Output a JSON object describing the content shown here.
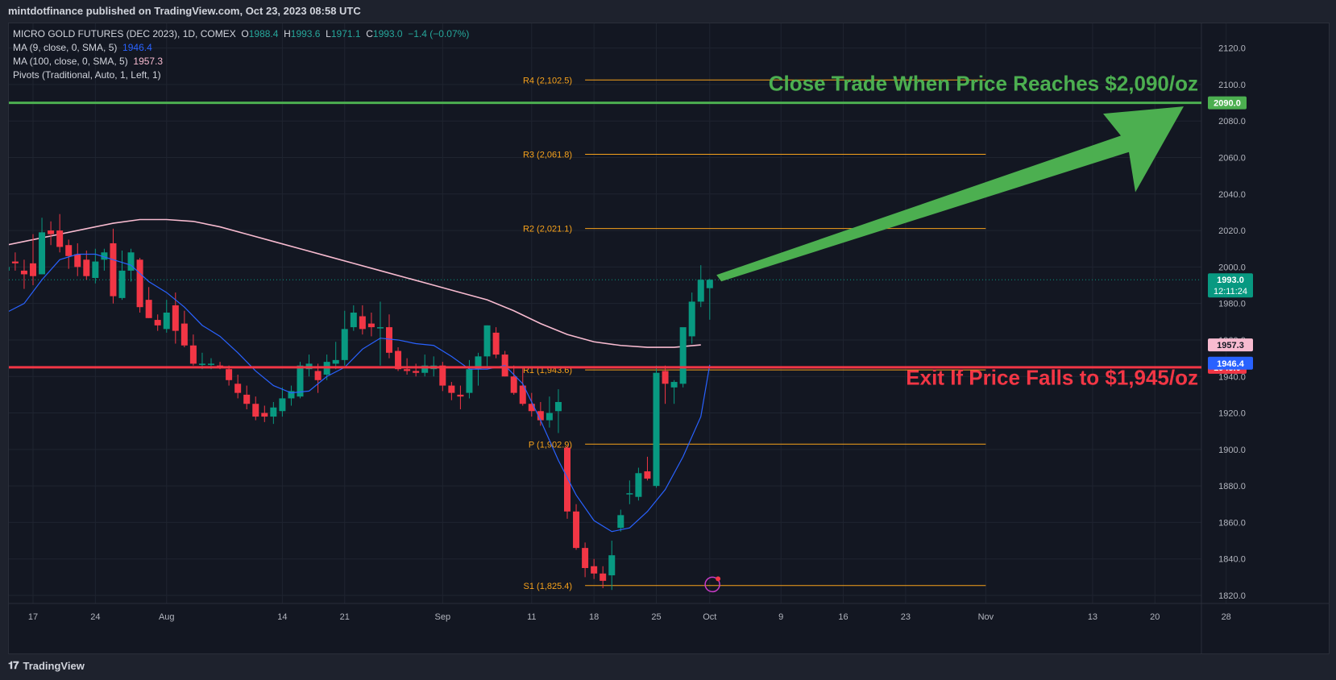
{
  "header": {
    "published": "mintdotfinance published on TradingView.com, Oct 23, 2023 08:58 UTC"
  },
  "legend": {
    "symbol": "MICRO GOLD FUTURES (DEC 2023), 1D, COMEX",
    "open_label": "O",
    "open": "1988.4",
    "high_label": "H",
    "high": "1993.6",
    "low_label": "L",
    "low": "1971.1",
    "close_label": "C",
    "close": "1993.0",
    "change": "−1.4 (−0.07%)",
    "ma9_label": "MA (9, close, 0, SMA, 5)",
    "ma9_value": "1946.4",
    "ma100_label": "MA (100, close, 0, SMA, 5)",
    "ma100_value": "1957.3",
    "pivots_label": "Pivots (Traditional, Auto, 1, Left, 1)"
  },
  "footer": {
    "logo": "TradingView"
  },
  "annotations": {
    "take_profit": "Close Trade When Price Reaches $2,090/oz",
    "stop_loss": "Exit If Price Falls to $1,945/oz"
  },
  "colors": {
    "background": "#131722",
    "up": "#089981",
    "down": "#f23645",
    "ma9": "#2962ff",
    "ma100": "#f8bbd0",
    "pivot": "#f7a21b",
    "take_profit": "#4caf50",
    "stop_loss": "#f23645",
    "grid": "#1f2430"
  },
  "chart_data": {
    "type": "candlestick",
    "ylim": [
      1820,
      2130
    ],
    "y_ticks": [
      1820,
      1840,
      1860,
      1880,
      1900,
      1920,
      1940,
      1960,
      1980,
      2000,
      2020,
      2040,
      2060,
      2080,
      2100,
      2120
    ],
    "y_tick_labels": [
      "1820.0",
      "1840.0",
      "1860.0",
      "1880.0",
      "1900.0",
      "1920.0",
      "1940.0",
      "1960.0",
      "1980.0",
      "2000.0",
      "2020.0",
      "2040.0",
      "2060.0",
      "2080.0",
      "2100.0",
      "2120.0"
    ],
    "x_ticks": [
      {
        "label": "17",
        "day": 0
      },
      {
        "label": "24",
        "day": 7
      },
      {
        "label": "Aug",
        "day": 15
      },
      {
        "label": "14",
        "day": 28
      },
      {
        "label": "21",
        "day": 35
      },
      {
        "label": "Sep",
        "day": 46
      },
      {
        "label": "11",
        "day": 56
      },
      {
        "label": "18",
        "day": 63
      },
      {
        "label": "25",
        "day": 70
      },
      {
        "label": "Oct",
        "day": 76
      },
      {
        "label": "9",
        "day": 84
      },
      {
        "label": "16",
        "day": 91
      },
      {
        "label": "23",
        "day": 98
      },
      {
        "label": "Nov",
        "day": 107
      },
      {
        "label": "13",
        "day": 119
      },
      {
        "label": "20",
        "day": 126
      },
      {
        "label": "28",
        "day": 134
      }
    ],
    "x_range_days": [
      -3,
      136
    ],
    "candles": [
      {
        "d": -3,
        "o": 1998,
        "h": 2006,
        "l": 1995,
        "c": 2000
      },
      {
        "d": -2,
        "o": 2003,
        "h": 2008,
        "l": 1998,
        "c": 2002
      },
      {
        "d": -1,
        "o": 1998,
        "h": 2004,
        "l": 1988,
        "c": 1996
      },
      {
        "d": 0,
        "o": 2002,
        "h": 2018,
        "l": 1990,
        "c": 1995
      },
      {
        "d": 1,
        "o": 1996,
        "h": 2027,
        "l": 1996,
        "c": 2019
      },
      {
        "d": 2,
        "o": 2020,
        "h": 2025,
        "l": 2012,
        "c": 2018
      },
      {
        "d": 3,
        "o": 2020,
        "h": 2029,
        "l": 2008,
        "c": 2011
      },
      {
        "d": 4,
        "o": 2012,
        "h": 2015,
        "l": 1999,
        "c": 2006
      },
      {
        "d": 5,
        "o": 2007,
        "h": 2013,
        "l": 1995,
        "c": 2000
      },
      {
        "d": 6,
        "o": 2004,
        "h": 2009,
        "l": 1993,
        "c": 1995
      },
      {
        "d": 7,
        "o": 1994,
        "h": 2010,
        "l": 1991,
        "c": 2003
      },
      {
        "d": 8,
        "o": 2004,
        "h": 2010,
        "l": 1998,
        "c": 2008
      },
      {
        "d": 9,
        "o": 2013,
        "h": 2021,
        "l": 1980,
        "c": 1984
      },
      {
        "d": 10,
        "o": 1983,
        "h": 2009,
        "l": 1982,
        "c": 1998
      },
      {
        "d": 11,
        "o": 1998,
        "h": 2010,
        "l": 1992,
        "c": 2008
      },
      {
        "d": 12,
        "o": 2004,
        "h": 2005,
        "l": 1975,
        "c": 1978
      },
      {
        "d": 13,
        "o": 1982,
        "h": 1989,
        "l": 1972,
        "c": 1972
      },
      {
        "d": 14,
        "o": 1971,
        "h": 1974,
        "l": 1965,
        "c": 1968
      },
      {
        "d": 15,
        "o": 1966,
        "h": 1982,
        "l": 1964,
        "c": 1975
      },
      {
        "d": 16,
        "o": 1979,
        "h": 1986,
        "l": 1958,
        "c": 1965
      },
      {
        "d": 17,
        "o": 1969,
        "h": 1976,
        "l": 1956,
        "c": 1957
      },
      {
        "d": 18,
        "o": 1957,
        "h": 1963,
        "l": 1946,
        "c": 1947
      },
      {
        "d": 19,
        "o": 1947,
        "h": 1953,
        "l": 1944,
        "c": 1947
      },
      {
        "d": 20,
        "o": 1947,
        "h": 1950,
        "l": 1944,
        "c": 1947
      },
      {
        "d": 21,
        "o": 1946,
        "h": 1948,
        "l": 1944,
        "c": 1945
      },
      {
        "d": 22,
        "o": 1944,
        "h": 1946,
        "l": 1935,
        "c": 1938
      },
      {
        "d": 23,
        "o": 1936,
        "h": 1941,
        "l": 1928,
        "c": 1931
      },
      {
        "d": 24,
        "o": 1930,
        "h": 1935,
        "l": 1922,
        "c": 1925
      },
      {
        "d": 25,
        "o": 1925,
        "h": 1929,
        "l": 1916,
        "c": 1918
      },
      {
        "d": 26,
        "o": 1920,
        "h": 1924,
        "l": 1915,
        "c": 1918
      },
      {
        "d": 27,
        "o": 1918,
        "h": 1926,
        "l": 1914,
        "c": 1923
      },
      {
        "d": 28,
        "o": 1921,
        "h": 1934,
        "l": 1918,
        "c": 1928
      },
      {
        "d": 29,
        "o": 1928,
        "h": 1935,
        "l": 1924,
        "c": 1932
      },
      {
        "d": 30,
        "o": 1929,
        "h": 1948,
        "l": 1928,
        "c": 1946
      },
      {
        "d": 31,
        "o": 1944,
        "h": 1952,
        "l": 1940,
        "c": 1947
      },
      {
        "d": 32,
        "o": 1943,
        "h": 1947,
        "l": 1931,
        "c": 1938
      },
      {
        "d": 33,
        "o": 1941,
        "h": 1952,
        "l": 1938,
        "c": 1948
      },
      {
        "d": 34,
        "o": 1947,
        "h": 1959,
        "l": 1944,
        "c": 1949
      },
      {
        "d": 35,
        "o": 1949,
        "h": 1976,
        "l": 1946,
        "c": 1966
      },
      {
        "d": 36,
        "o": 1967,
        "h": 1979,
        "l": 1965,
        "c": 1975
      },
      {
        "d": 37,
        "o": 1973,
        "h": 1979,
        "l": 1963,
        "c": 1966
      },
      {
        "d": 38,
        "o": 1969,
        "h": 1975,
        "l": 1962,
        "c": 1967
      },
      {
        "d": 39,
        "o": 1967,
        "h": 1981,
        "l": 1946,
        "c": 1967
      },
      {
        "d": 40,
        "o": 1967,
        "h": 1974,
        "l": 1950,
        "c": 1953
      },
      {
        "d": 41,
        "o": 1954,
        "h": 1956,
        "l": 1943,
        "c": 1944
      },
      {
        "d": 42,
        "o": 1944,
        "h": 1950,
        "l": 1941,
        "c": 1943
      },
      {
        "d": 43,
        "o": 1943,
        "h": 1947,
        "l": 1940,
        "c": 1942
      },
      {
        "d": 44,
        "o": 1942,
        "h": 1952,
        "l": 1940,
        "c": 1946
      },
      {
        "d": 45,
        "o": 1944,
        "h": 1951,
        "l": 1940,
        "c": 1946
      },
      {
        "d": 46,
        "o": 1946,
        "h": 1948,
        "l": 1932,
        "c": 1935
      },
      {
        "d": 47,
        "o": 1935,
        "h": 1937,
        "l": 1927,
        "c": 1931
      },
      {
        "d": 48,
        "o": 1930,
        "h": 1935,
        "l": 1922,
        "c": 1929
      },
      {
        "d": 49,
        "o": 1931,
        "h": 1949,
        "l": 1928,
        "c": 1944
      },
      {
        "d": 50,
        "o": 1944,
        "h": 1953,
        "l": 1935,
        "c": 1951
      },
      {
        "d": 51,
        "o": 1951,
        "h": 1968,
        "l": 1945,
        "c": 1968
      },
      {
        "d": 52,
        "o": 1964,
        "h": 1967,
        "l": 1950,
        "c": 1952
      },
      {
        "d": 53,
        "o": 1952,
        "h": 1954,
        "l": 1940,
        "c": 1940
      },
      {
        "d": 54,
        "o": 1940,
        "h": 1946,
        "l": 1930,
        "c": 1931
      },
      {
        "d": 55,
        "o": 1935,
        "h": 1945,
        "l": 1924,
        "c": 1925
      },
      {
        "d": 56,
        "o": 1925,
        "h": 1931,
        "l": 1918,
        "c": 1921
      },
      {
        "d": 57,
        "o": 1921,
        "h": 1926,
        "l": 1913,
        "c": 1916
      },
      {
        "d": 58,
        "o": 1916,
        "h": 1929,
        "l": 1912,
        "c": 1920
      },
      {
        "d": 59,
        "o": 1921,
        "h": 1933,
        "l": 1909,
        "c": 1926
      },
      {
        "d": 60,
        "o": 1901,
        "h": 1902,
        "l": 1862,
        "c": 1866
      },
      {
        "d": 61,
        "o": 1866,
        "h": 1870,
        "l": 1845,
        "c": 1846
      },
      {
        "d": 62,
        "o": 1846,
        "h": 1849,
        "l": 1830,
        "c": 1835
      },
      {
        "d": 63,
        "o": 1836,
        "h": 1840,
        "l": 1829,
        "c": 1832
      },
      {
        "d": 64,
        "o": 1832,
        "h": 1836,
        "l": 1824,
        "c": 1828
      },
      {
        "d": 65,
        "o": 1831,
        "h": 1850,
        "l": 1823,
        "c": 1842
      },
      {
        "d": 66,
        "o": 1857,
        "h": 1867,
        "l": 1855,
        "c": 1864
      },
      {
        "d": 67,
        "o": 1876,
        "h": 1883,
        "l": 1870,
        "c": 1876
      },
      {
        "d": 68,
        "o": 1874,
        "h": 1890,
        "l": 1872,
        "c": 1887
      },
      {
        "d": 69,
        "o": 1888,
        "h": 1896,
        "l": 1883,
        "c": 1884
      },
      {
        "d": 70,
        "o": 1880,
        "h": 1946,
        "l": 1879,
        "c": 1942
      },
      {
        "d": 71,
        "o": 1943,
        "h": 1946,
        "l": 1925,
        "c": 1936
      },
      {
        "d": 72,
        "o": 1934,
        "h": 1938,
        "l": 1925,
        "c": 1937
      },
      {
        "d": 73,
        "o": 1936,
        "h": 1964,
        "l": 1934,
        "c": 1967
      },
      {
        "d": 74,
        "o": 1962,
        "h": 1986,
        "l": 1958,
        "c": 1981
      },
      {
        "d": 75,
        "o": 1981,
        "h": 2001,
        "l": 1978,
        "c": 1993
      },
      {
        "d": 76,
        "o": 1988.4,
        "h": 1993.6,
        "l": 1971.1,
        "c": 1993.0
      }
    ],
    "ma9": [
      [
        -3,
        1975
      ],
      [
        -1,
        1980
      ],
      [
        1,
        1993
      ],
      [
        3,
        2004
      ],
      [
        5,
        2007
      ],
      [
        7,
        2007
      ],
      [
        9,
        2004
      ],
      [
        11,
        2001
      ],
      [
        13,
        1992
      ],
      [
        15,
        1986
      ],
      [
        17,
        1978
      ],
      [
        19,
        1968
      ],
      [
        21,
        1962
      ],
      [
        23,
        1953
      ],
      [
        25,
        1943
      ],
      [
        27,
        1935
      ],
      [
        29,
        1931
      ],
      [
        31,
        1932
      ],
      [
        33,
        1940
      ],
      [
        35,
        1945
      ],
      [
        37,
        1955
      ],
      [
        39,
        1961
      ],
      [
        41,
        1960
      ],
      [
        43,
        1958
      ],
      [
        45,
        1957
      ],
      [
        47,
        1951
      ],
      [
        49,
        1944
      ],
      [
        51,
        1944
      ],
      [
        53,
        1946
      ],
      [
        55,
        1936
      ],
      [
        57,
        1916
      ],
      [
        59,
        1894
      ],
      [
        61,
        1875
      ],
      [
        63,
        1861
      ],
      [
        65,
        1855
      ],
      [
        67,
        1857
      ],
      [
        69,
        1866
      ],
      [
        71,
        1878
      ],
      [
        73,
        1896
      ],
      [
        75,
        1918
      ],
      [
        76,
        1946.4
      ]
    ],
    "ma100": [
      [
        -3,
        2012
      ],
      [
        0,
        2015
      ],
      [
        3,
        2018
      ],
      [
        6,
        2021
      ],
      [
        9,
        2024
      ],
      [
        12,
        2026
      ],
      [
        15,
        2026
      ],
      [
        18,
        2025
      ],
      [
        21,
        2022
      ],
      [
        24,
        2018
      ],
      [
        27,
        2014
      ],
      [
        30,
        2010
      ],
      [
        33,
        2006
      ],
      [
        36,
        2002
      ],
      [
        39,
        1998
      ],
      [
        42,
        1994
      ],
      [
        45,
        1990
      ],
      [
        48,
        1986
      ],
      [
        51,
        1982
      ],
      [
        54,
        1976
      ],
      [
        57,
        1969
      ],
      [
        60,
        1963
      ],
      [
        63,
        1959
      ],
      [
        66,
        1957
      ],
      [
        69,
        1956
      ],
      [
        72,
        1956
      ],
      [
        75,
        1957.3
      ]
    ],
    "pivots": [
      {
        "label": "R4 (2,102.5)",
        "value": 2102.5
      },
      {
        "label": "R3 (2,061.8)",
        "value": 2061.8
      },
      {
        "label": "R2 (2,021.1)",
        "value": 2021.1
      },
      {
        "label": "R1 (1,943.6)",
        "value": 1943.6
      },
      {
        "label": "P (1,902.9)",
        "value": 1902.9
      },
      {
        "label": "S1 (1,825.4)",
        "value": 1825.4
      }
    ],
    "hlines": [
      {
        "name": "take-profit",
        "value": 2090,
        "label": "2090.0"
      },
      {
        "name": "stop-loss",
        "value": 1945,
        "label": "1945.0"
      }
    ],
    "price_labels": [
      {
        "name": "last-price",
        "text": "1993.0",
        "sub": "12:11:24",
        "value": 1993.0
      },
      {
        "name": "ma100-value",
        "text": "1957.3",
        "value": 1957.3
      },
      {
        "name": "ma9-value",
        "text": "1946.4",
        "value": 1946.4
      }
    ]
  }
}
